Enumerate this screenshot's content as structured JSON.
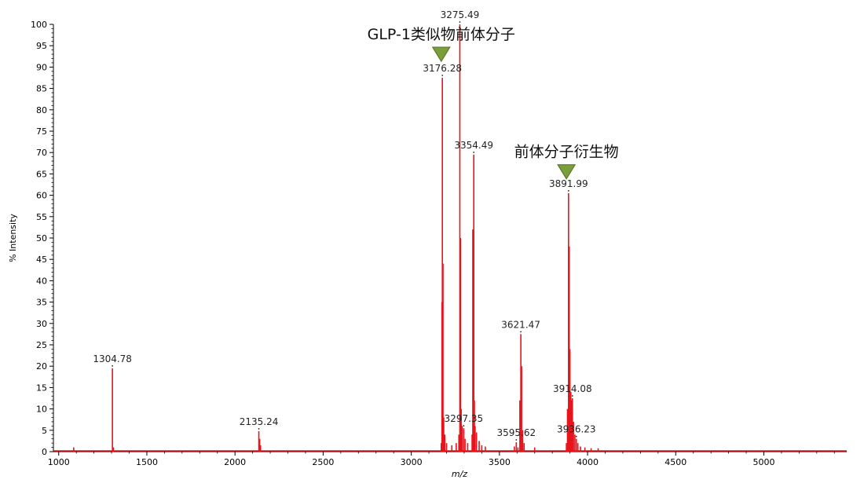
{
  "chart_data": {
    "type": "line",
    "title": "",
    "xlabel": "m/z",
    "ylabel": "% Intensity",
    "xlim": [
      970,
      5470
    ],
    "ylim": [
      0,
      100
    ],
    "x_ticks": [
      1000,
      1500,
      2000,
      2500,
      3000,
      3500,
      4000,
      4500,
      5000
    ],
    "y_ticks": [
      0,
      5,
      10,
      15,
      20,
      25,
      30,
      35,
      40,
      45,
      50,
      55,
      60,
      65,
      70,
      75,
      80,
      85,
      90,
      95,
      100
    ],
    "grid": false,
    "series": [
      {
        "color": "#e8141c",
        "peaks": [
          {
            "x": 1085,
            "y": 1
          },
          {
            "x": 1304.78,
            "y": 19.5
          },
          {
            "x": 1310,
            "y": 1
          },
          {
            "x": 2135.24,
            "y": 4.8
          },
          {
            "x": 2140,
            "y": 3
          },
          {
            "x": 2145,
            "y": 1.5
          },
          {
            "x": 3170,
            "y": 2
          },
          {
            "x": 3174,
            "y": 35
          },
          {
            "x": 3176.28,
            "y": 87.5
          },
          {
            "x": 3180,
            "y": 44
          },
          {
            "x": 3184,
            "y": 8
          },
          {
            "x": 3190,
            "y": 4
          },
          {
            "x": 3200,
            "y": 2
          },
          {
            "x": 3230,
            "y": 1.5
          },
          {
            "x": 3255,
            "y": 2
          },
          {
            "x": 3270,
            "y": 4
          },
          {
            "x": 3275.49,
            "y": 100
          },
          {
            "x": 3279,
            "y": 50
          },
          {
            "x": 3283,
            "y": 10
          },
          {
            "x": 3288,
            "y": 6
          },
          {
            "x": 3297.35,
            "y": 5.5
          },
          {
            "x": 3305,
            "y": 3
          },
          {
            "x": 3320,
            "y": 2
          },
          {
            "x": 3345,
            "y": 4
          },
          {
            "x": 3349,
            "y": 52
          },
          {
            "x": 3354.49,
            "y": 69.5
          },
          {
            "x": 3358,
            "y": 12
          },
          {
            "x": 3362,
            "y": 6
          },
          {
            "x": 3370,
            "y": 4.5
          },
          {
            "x": 3385,
            "y": 2.5
          },
          {
            "x": 3400,
            "y": 1.5
          },
          {
            "x": 3420,
            "y": 1.2
          },
          {
            "x": 3585,
            "y": 1.2
          },
          {
            "x": 3595.62,
            "y": 2.2
          },
          {
            "x": 3605,
            "y": 1
          },
          {
            "x": 3616,
            "y": 12
          },
          {
            "x": 3621.47,
            "y": 27.5
          },
          {
            "x": 3626,
            "y": 20
          },
          {
            "x": 3632,
            "y": 5
          },
          {
            "x": 3640,
            "y": 2
          },
          {
            "x": 3700,
            "y": 1
          },
          {
            "x": 3880,
            "y": 2
          },
          {
            "x": 3886,
            "y": 10
          },
          {
            "x": 3891.99,
            "y": 60.5
          },
          {
            "x": 3896,
            "y": 48
          },
          {
            "x": 3900,
            "y": 24
          },
          {
            "x": 3905,
            "y": 14
          },
          {
            "x": 3909,
            "y": 12
          },
          {
            "x": 3914.08,
            "y": 12.5
          },
          {
            "x": 3920,
            "y": 7
          },
          {
            "x": 3928,
            "y": 4
          },
          {
            "x": 3936.23,
            "y": 3
          },
          {
            "x": 3945,
            "y": 2
          },
          {
            "x": 3960,
            "y": 1.2
          },
          {
            "x": 3985,
            "y": 1
          },
          {
            "x": 4020,
            "y": 0.8
          },
          {
            "x": 4060,
            "y": 0.8
          }
        ]
      }
    ],
    "peak_labels": [
      {
        "text": "1304.78",
        "x": 1304.78,
        "y": 19.5
      },
      {
        "text": "2135.24",
        "x": 2135.24,
        "y": 4.8
      },
      {
        "text": "3176.28",
        "x": 3176.28,
        "y": 87.5
      },
      {
        "text": "3275.49",
        "x": 3275.49,
        "y": 100
      },
      {
        "text": "3354.49",
        "x": 3354.49,
        "y": 69.5
      },
      {
        "text": "3297.35",
        "x": 3297.35,
        "y": 5.5
      },
      {
        "text": "3595.62",
        "x": 3595.62,
        "y": 2.2
      },
      {
        "text": "3621.47",
        "x": 3621.47,
        "y": 27.5
      },
      {
        "text": "3891.99",
        "x": 3891.99,
        "y": 60.5
      },
      {
        "text": "3914.08",
        "x": 3914.08,
        "y": 12.5
      },
      {
        "text": "3936.23",
        "x": 3936.23,
        "y": 3
      }
    ],
    "annotations": [
      {
        "text": "GLP-1类似物前体分子",
        "marker_x": 3170,
        "marker_y": 93
      },
      {
        "text": "前体分子衍生物",
        "marker_x": 3880,
        "marker_y": 65.5
      }
    ],
    "marker_color": "#7a9e3c"
  }
}
